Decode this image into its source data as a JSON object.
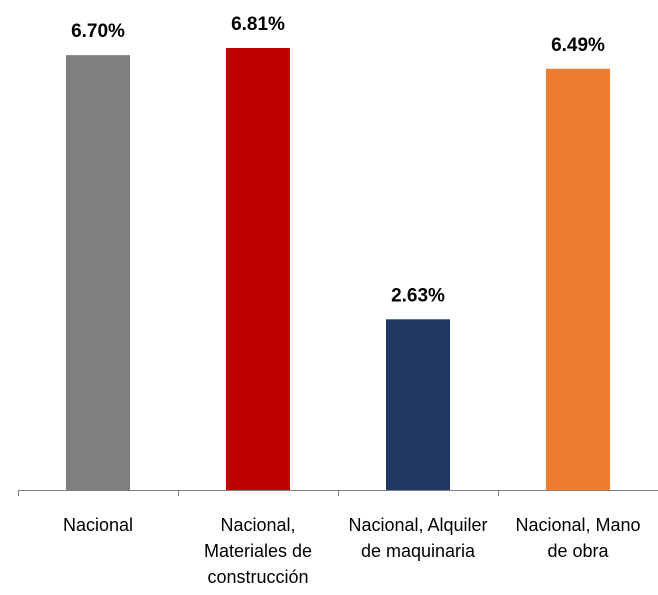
{
  "chart_data": {
    "type": "bar",
    "categories": [
      "Nacional",
      "Nacional, Materiales de construcción",
      "Nacional, Alquiler de maquinaria",
      "Nacional, Mano de obra"
    ],
    "values": [
      6.7,
      6.81,
      2.63,
      6.49
    ],
    "value_labels": [
      "6.70%",
      "6.81%",
      "2.63%",
      "6.49%"
    ],
    "colors": [
      "#7f7f7f",
      "#c00000",
      "#1f3864",
      "#ed7d31"
    ]
  }
}
